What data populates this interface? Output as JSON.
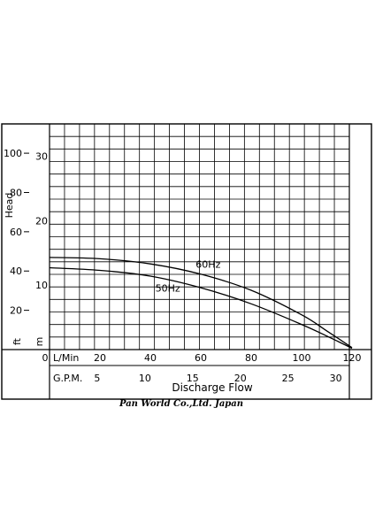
{
  "chart_data": {
    "type": "line",
    "title": "",
    "xlabel": "Discharge Flow",
    "ylabel": "Head",
    "x_primary": {
      "unit": "L/Min",
      "ticks": [
        "0",
        "20",
        "40",
        "60",
        "80",
        "100",
        "120"
      ],
      "range": [
        0,
        120
      ]
    },
    "x_secondary": {
      "unit": "G.P.M.",
      "ticks": [
        "5",
        "10",
        "15",
        "20",
        "25",
        "30"
      ]
    },
    "y_ft": {
      "unit": "ft",
      "ticks": [
        "20",
        "40",
        "60",
        "80",
        "100"
      ]
    },
    "y_m": {
      "unit": "m",
      "ticks": [
        "10",
        "20",
        "30"
      ],
      "range": [
        0,
        35
      ]
    },
    "grid": true,
    "series": [
      {
        "name": "60Hz",
        "x": [
          0,
          20,
          40,
          60,
          80,
          100,
          110,
          120
        ],
        "y": [
          14.3,
          14.1,
          13.3,
          11.7,
          9.2,
          5.4,
          2.9,
          0.3
        ]
      },
      {
        "name": "50Hz",
        "x": [
          0,
          20,
          40,
          60,
          80,
          100,
          110,
          120
        ],
        "y": [
          12.7,
          12.3,
          11.4,
          9.6,
          7.1,
          3.9,
          2.1,
          0.2
        ]
      }
    ]
  },
  "caption": "Pan World Co.,Ltd. Japan"
}
